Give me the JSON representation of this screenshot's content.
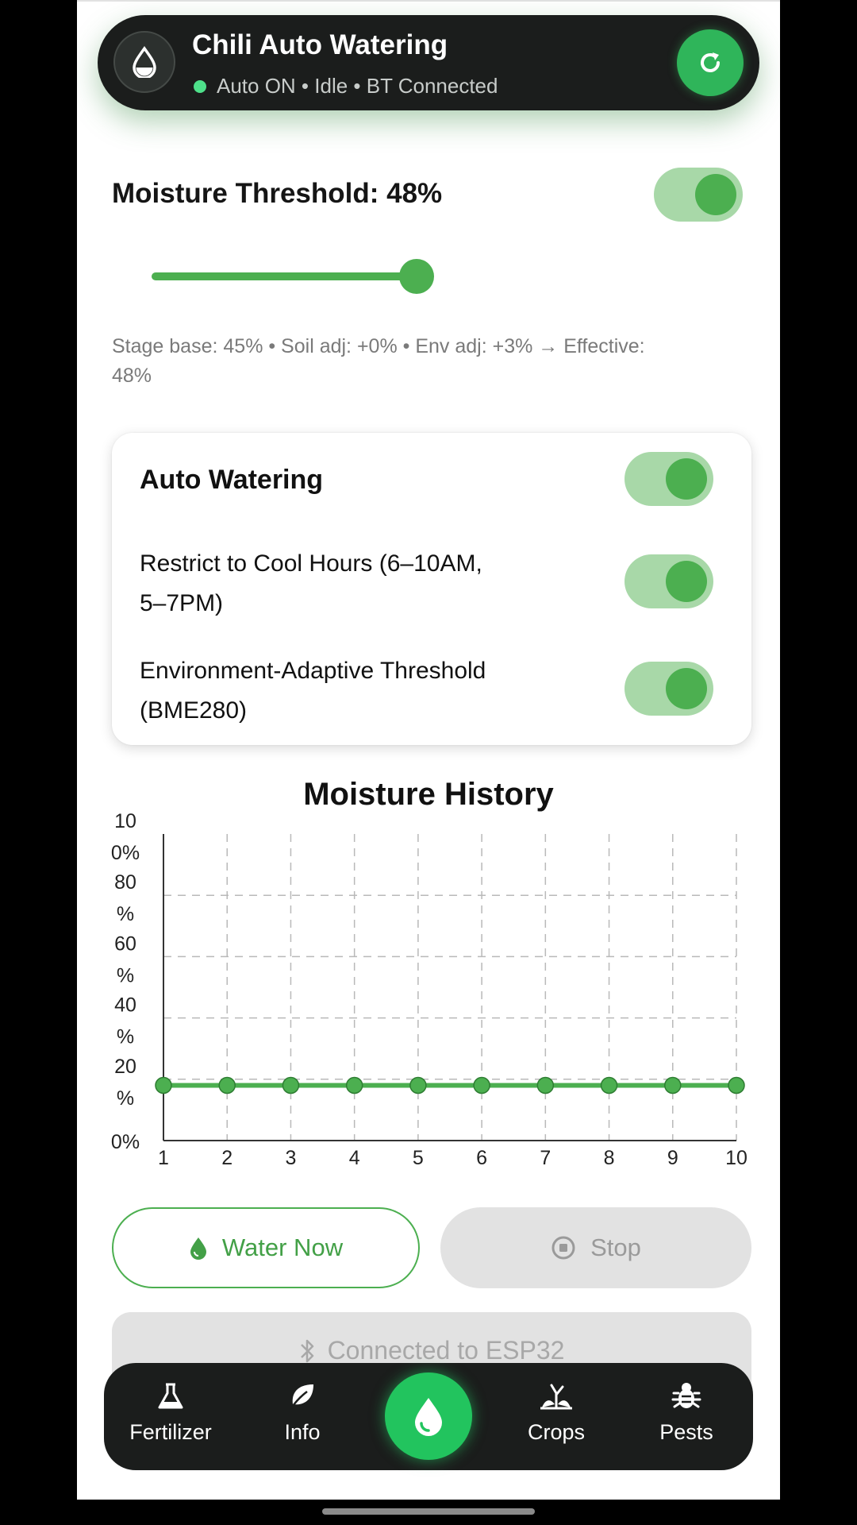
{
  "header": {
    "title": "Chili Auto Watering",
    "status": "Auto ON • Idle • BT Connected",
    "logo_icon": "water-drop-icon",
    "refresh_icon": "refresh-icon"
  },
  "threshold": {
    "title": "Moisture Threshold: 48%",
    "value_percent": 48,
    "enabled": true,
    "info": "Stage base: 45%  •  Soil adj: +0%  •  Env adj: +3%  →  Effective: 48%"
  },
  "settings": {
    "auto_watering": {
      "label": "Auto Watering",
      "on": true
    },
    "cool_hours": {
      "label_line1": "Restrict to Cool Hours (6–10AM,",
      "label_line2": "5–7PM)",
      "on": true
    },
    "env_adaptive": {
      "label_line1": "Environment-Adaptive Threshold",
      "label_line2": "(BME280)",
      "on": true
    }
  },
  "chart_data": {
    "type": "line",
    "title": "Moisture History",
    "x": [
      1,
      2,
      3,
      4,
      5,
      6,
      7,
      8,
      9,
      10
    ],
    "series": [
      {
        "values": [
          18,
          18,
          18,
          18,
          18,
          18,
          18,
          18,
          18,
          18
        ]
      }
    ],
    "y_tick_labels": [
      {
        "value": 0,
        "lines": [
          "0%"
        ]
      },
      {
        "value": 20,
        "lines": [
          "20",
          "%"
        ]
      },
      {
        "value": 40,
        "lines": [
          "40",
          "%"
        ]
      },
      {
        "value": 60,
        "lines": [
          "60",
          "%"
        ]
      },
      {
        "value": 80,
        "lines": [
          "80",
          "%"
        ]
      },
      {
        "value": 100,
        "lines": [
          "10",
          "0%"
        ]
      }
    ],
    "xlim": [
      1,
      10
    ],
    "ylim": [
      0,
      100
    ],
    "grid": true,
    "line_color": "#4caf50"
  },
  "actions": {
    "water_now": "Water Now",
    "stop": "Stop",
    "connected": "Connected to ESP32"
  },
  "nav": {
    "fertilizer": "Fertilizer",
    "info": "Info",
    "crops": "Crops",
    "pests": "Pests"
  },
  "colors": {
    "accent": "#4caf50",
    "dark": "#1b1d1c",
    "nav_center": "#22c45e"
  }
}
